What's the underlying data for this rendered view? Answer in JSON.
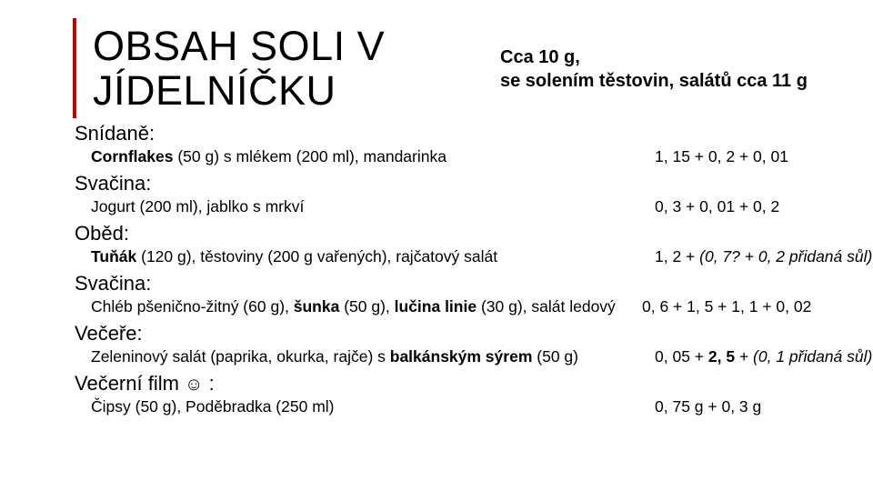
{
  "title_line1": "OBSAH SOLI V",
  "title_line2": "JÍDELNÍČKU",
  "summary_line1": "Cca 10 g,",
  "summary_line2": "se solením těstovin, salátů cca 11 g",
  "colors": {
    "accent_bar": "#c00000",
    "text": "#000000",
    "background": "#ffffff"
  },
  "typography": {
    "title_fontsize": 45,
    "summary_fontsize": 20,
    "section_title_fontsize": 22,
    "item_fontsize": 17.5
  },
  "sections": {
    "snidane": {
      "title": "Snídaně:",
      "item_pre_bold": "Cornflakes",
      "item_rest": " (50 g) s mlékem (200 ml), mandarinka",
      "values": "1, 15 + 0, 2 + 0, 01"
    },
    "svacina1": {
      "title": "Svačina:",
      "item": "Jogurt (200 ml), jablko s mrkví",
      "values": "0, 3 + 0, 01 + 0, 2"
    },
    "obed": {
      "title": "Oběd:",
      "item_pre_bold": "Tuňák",
      "item_rest": " (120 g), těstoviny (200 g vařených), rajčatový salát",
      "values_pre": "1, 2 + ",
      "values_italic": "(0, 7? + 0, 2 přidaná sůl)"
    },
    "svacina2": {
      "title": "Svačina:",
      "item_part1": "Chléb pšenično-žitný (60 g), ",
      "item_bold1": "šunka",
      "item_part2": " (50 g), ",
      "item_bold2": "lučina linie",
      "item_part3": " (30 g), salát ledový",
      "values": "0, 6 + 1, 5 + 1, 1 + 0, 02"
    },
    "vecere": {
      "title": "Večeře:",
      "item_part1": "Zeleninový salát (paprika, okurka, rajče) s ",
      "item_bold": "balkánským sýrem",
      "item_part2": " (50 g)",
      "values_pre": "0, 05 + ",
      "values_bold": "2, 5",
      "values_post": " + ",
      "values_italic": "(0, 1 přidaná sůl)"
    },
    "film": {
      "title_pre": "Večerní film ",
      "title_post": " :",
      "smiley": "☺",
      "item": "Čipsy (50 g), Poděbradka (250 ml)",
      "values": "0, 75 g + 0, 3 g"
    }
  }
}
